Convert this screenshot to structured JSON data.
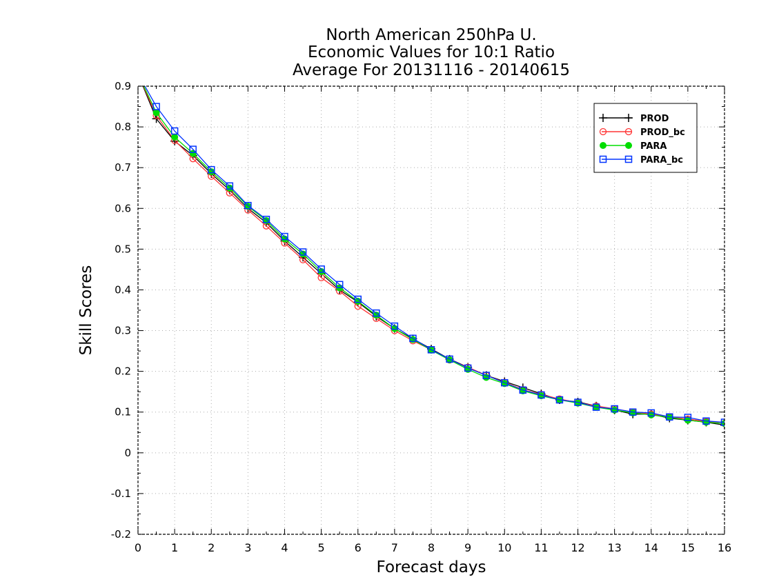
{
  "chart_data": {
    "type": "line",
    "title_lines": [
      "North American 250hPa U.",
      "Economic Values for 10:1 Ratio",
      "Average For 20131116 - 20140615"
    ],
    "xlabel": "Forecast days",
    "ylabel": "Skill Scores",
    "xlim": [
      0,
      16
    ],
    "ylim": [
      -0.2,
      0.9
    ],
    "xticks": [
      "0",
      "1",
      "2",
      "3",
      "4",
      "5",
      "6",
      "7",
      "8",
      "9",
      "10",
      "11",
      "12",
      "13",
      "14",
      "15",
      "16"
    ],
    "yticks": [
      "-0.2",
      "-0.1",
      "0",
      "0.1",
      "0.2",
      "0.3",
      "0.4",
      "0.5",
      "0.6",
      "0.7",
      "0.8",
      "0.9"
    ],
    "grid": true,
    "legend_position": "top-right",
    "x": [
      0,
      0.5,
      1,
      1.5,
      2,
      2.5,
      3,
      3.5,
      4,
      4.5,
      5,
      5.5,
      6,
      6.5,
      7,
      7.5,
      8,
      8.5,
      9,
      9.5,
      10,
      10.5,
      11,
      11.5,
      12,
      12.5,
      13,
      13.5,
      14,
      14.5,
      15,
      15.5,
      16
    ],
    "series": [
      {
        "name": "PROD",
        "color": "#000000",
        "marker": "plus",
        "values": [
          0.93,
          0.82,
          0.765,
          0.73,
          0.685,
          0.645,
          0.6,
          0.565,
          0.52,
          0.48,
          0.44,
          0.4,
          0.37,
          0.335,
          0.305,
          0.28,
          0.255,
          0.23,
          0.21,
          0.19,
          0.175,
          0.16,
          0.145,
          0.13,
          0.125,
          0.115,
          0.105,
          0.095,
          0.095,
          0.085,
          0.08,
          0.075,
          0.068
        ]
      },
      {
        "name": "PROD_bc",
        "color": "#ff3333",
        "marker": "circle",
        "values": [
          0.93,
          0.828,
          0.767,
          0.722,
          0.679,
          0.638,
          0.596,
          0.557,
          0.515,
          0.474,
          0.43,
          0.397,
          0.36,
          0.33,
          0.3,
          0.275,
          0.253,
          0.228,
          0.21,
          0.19,
          0.173,
          0.155,
          0.143,
          0.132,
          0.123,
          0.115,
          0.108,
          0.1,
          0.095,
          0.088,
          0.083,
          0.077,
          0.072
        ]
      },
      {
        "name": "PARA",
        "color": "#00dd00",
        "marker": "dot",
        "values": [
          0.93,
          0.835,
          0.775,
          0.735,
          0.69,
          0.65,
          0.605,
          0.57,
          0.525,
          0.488,
          0.445,
          0.405,
          0.372,
          0.338,
          0.305,
          0.278,
          0.252,
          0.228,
          0.205,
          0.185,
          0.17,
          0.152,
          0.14,
          0.13,
          0.122,
          0.112,
          0.105,
          0.098,
          0.093,
          0.087,
          0.08,
          0.075,
          0.072
        ]
      },
      {
        "name": "PARA_bc",
        "color": "#0033ff",
        "marker": "square",
        "values": [
          0.93,
          0.85,
          0.79,
          0.745,
          0.695,
          0.655,
          0.607,
          0.573,
          0.531,
          0.493,
          0.451,
          0.413,
          0.377,
          0.343,
          0.311,
          0.281,
          0.253,
          0.23,
          0.208,
          0.19,
          0.172,
          0.154,
          0.142,
          0.13,
          0.124,
          0.112,
          0.108,
          0.1,
          0.098,
          0.088,
          0.087,
          0.078,
          0.075
        ]
      }
    ]
  }
}
